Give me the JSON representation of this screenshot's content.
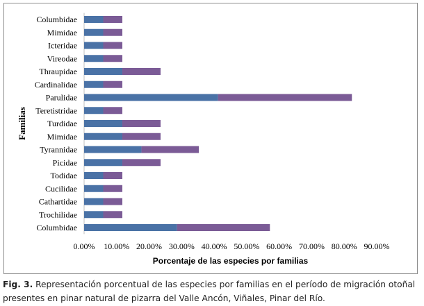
{
  "caption": {
    "label": "Fig. 3.",
    "text": "Representación porcentual de las especies por familias en el período de migración otoñal presentes en pinar natural de pizarra del Valle Ancón, Viñales, Pinar del Río."
  },
  "chart_data": {
    "type": "bar",
    "orientation": "horizontal",
    "stacked": true,
    "categories": [
      "Columbidae",
      "Mimidae",
      "Icteridae",
      "Vireodae",
      "Thraupidae",
      "Cardinalidae",
      "Parulidae",
      "Teretistridae",
      "Turdidae",
      "Mimidae",
      "Tyrannidae",
      "Picidae",
      "Todidae",
      "Cucilidae",
      "Cathartidae",
      "Trochilidae",
      "Columbidae"
    ],
    "series": [
      {
        "color": "#4a72a6",
        "values": [
          5.88,
          5.88,
          5.88,
          5.88,
          11.76,
          5.88,
          41.18,
          5.88,
          11.76,
          11.76,
          17.65,
          11.76,
          5.88,
          5.88,
          5.88,
          5.88,
          28.57
        ]
      },
      {
        "color": "#7b5b96",
        "values": [
          5.88,
          5.88,
          5.88,
          5.88,
          11.76,
          5.88,
          41.18,
          5.88,
          11.76,
          11.76,
          17.65,
          11.76,
          5.88,
          5.88,
          5.88,
          5.88,
          28.57
        ]
      }
    ],
    "xlim": [
      0,
      90
    ],
    "xticks": [
      "0.00%",
      "10.00%",
      "20.00%",
      "30.00%",
      "40.00%",
      "50.00%",
      "60.00%",
      "70.00%",
      "80.00%",
      "90.00%"
    ],
    "xlabel": "Porcentaje de las especies por familias",
    "ylabel": "Familias",
    "grid": false,
    "legend": "none"
  }
}
